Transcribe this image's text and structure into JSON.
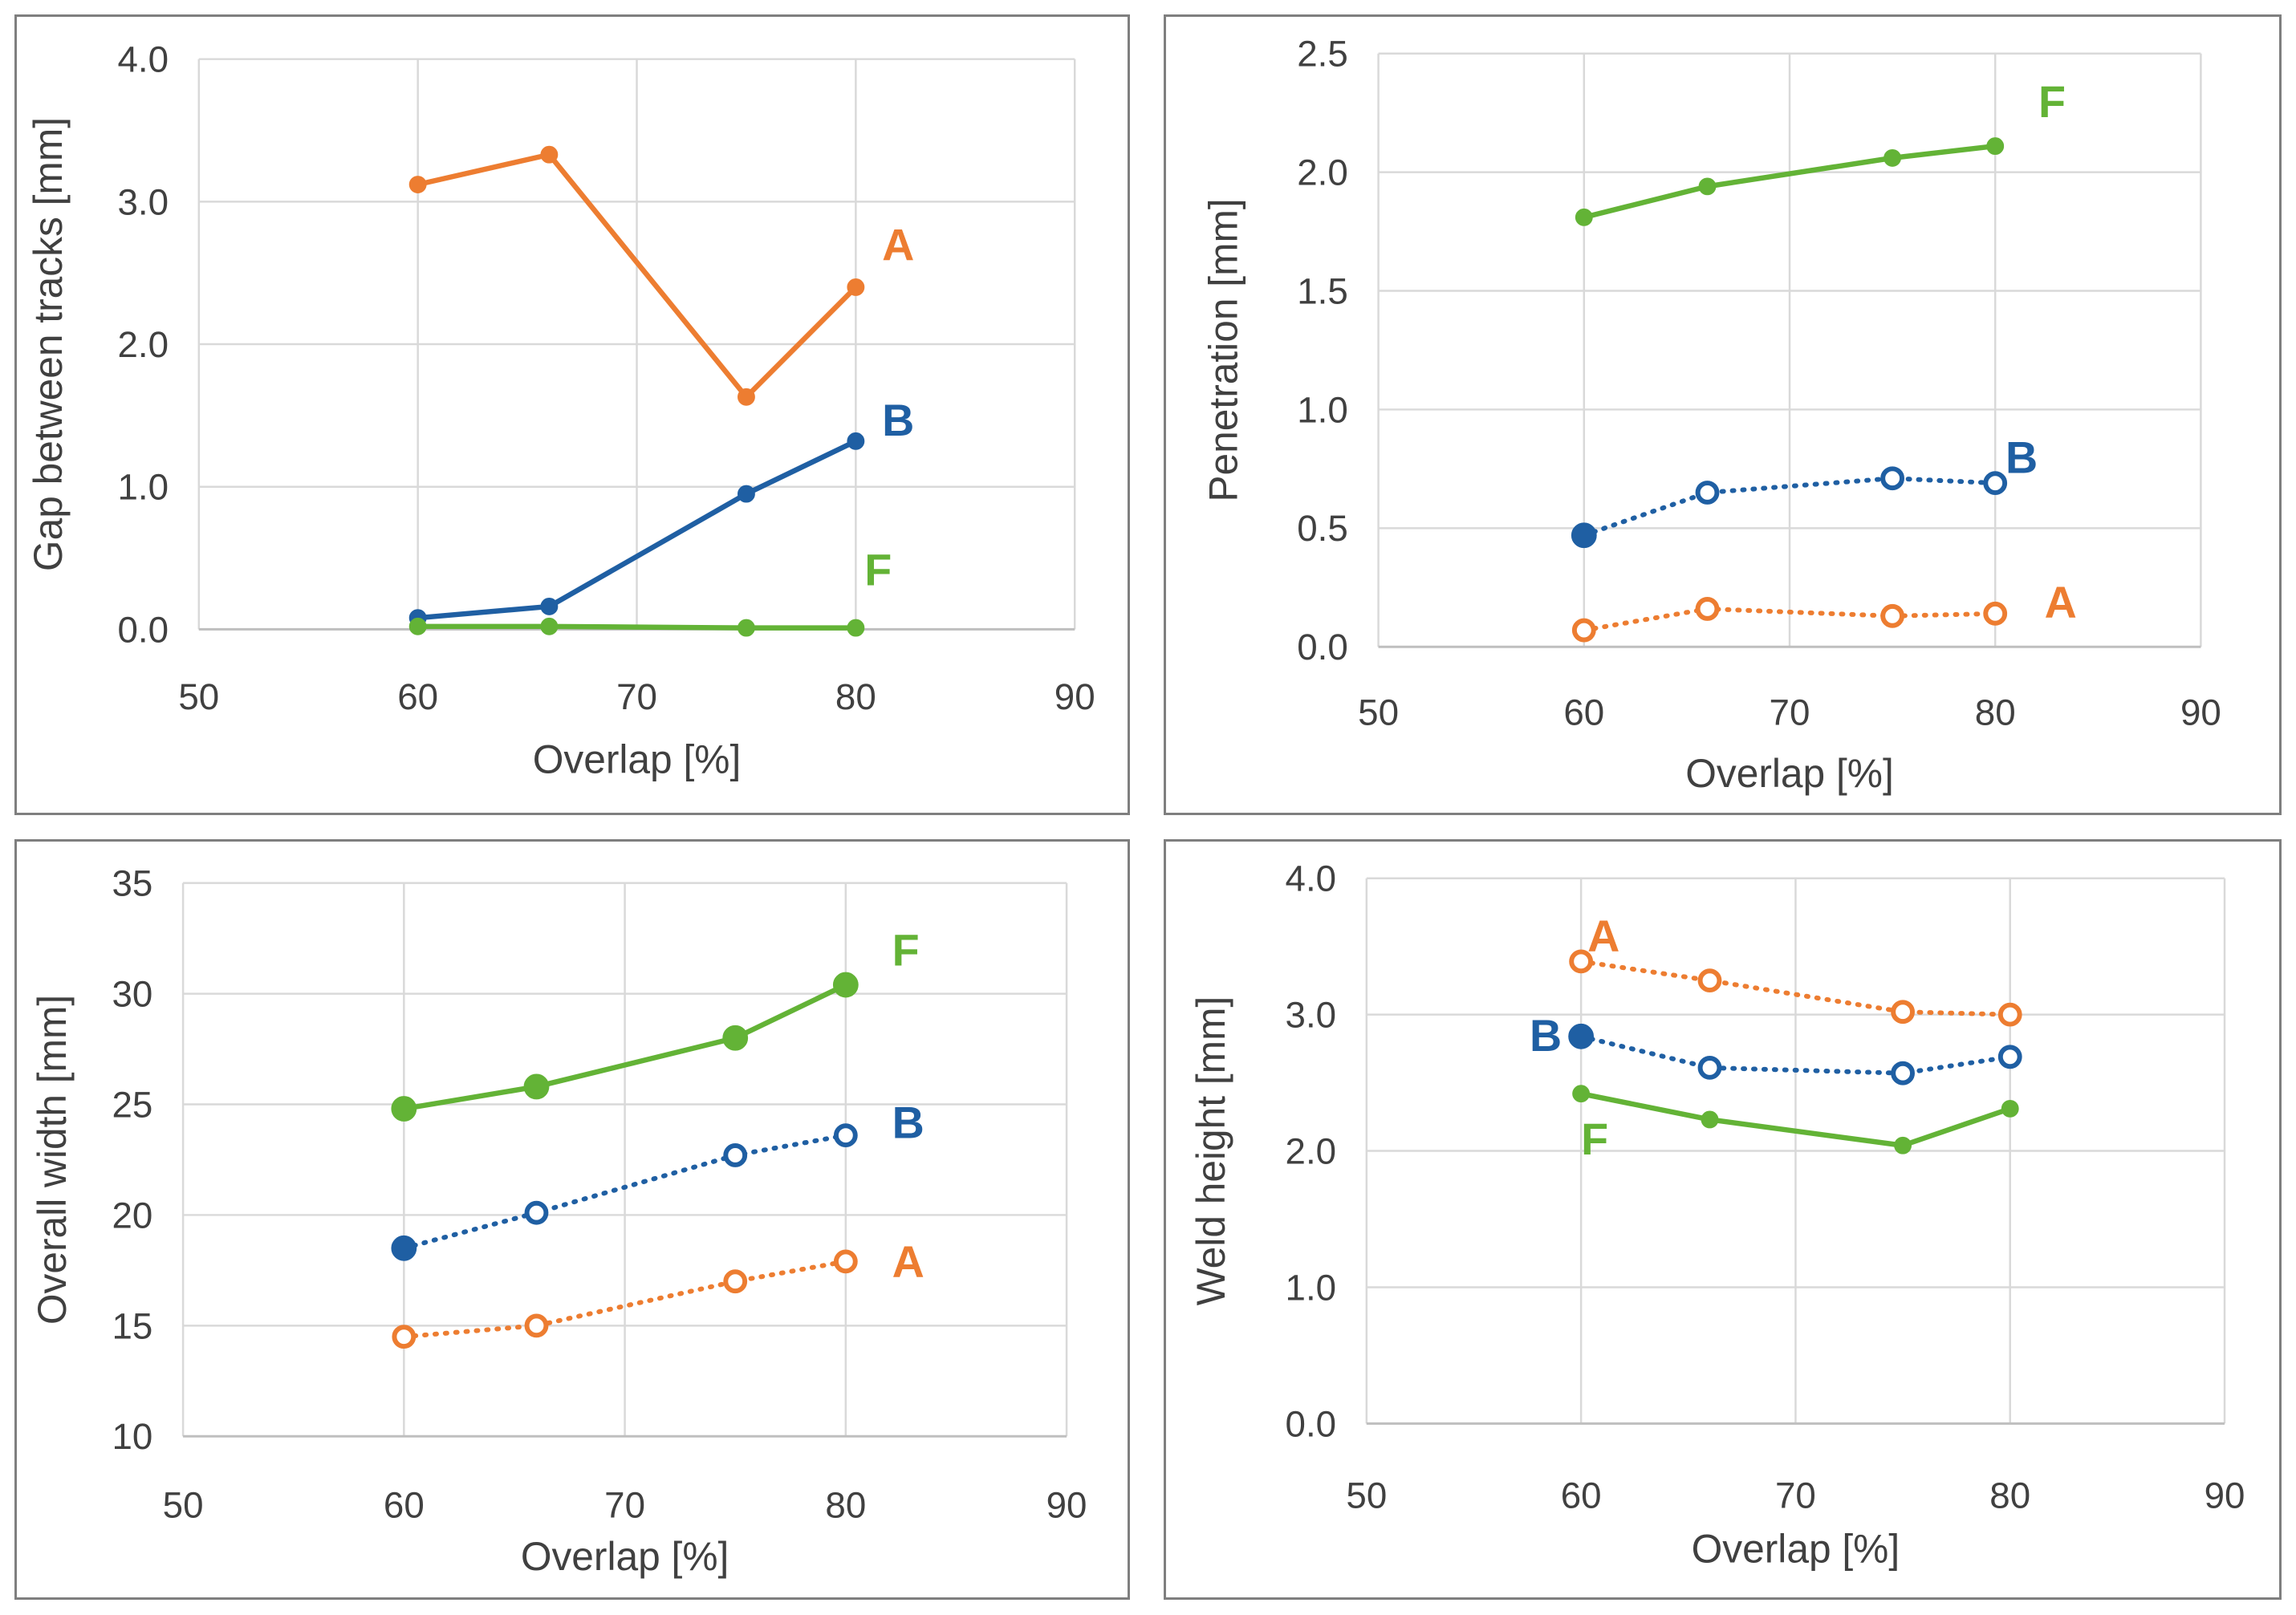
{
  "colors": {
    "A": "#ed7d31",
    "B": "#1f5fa3",
    "F": "#63b336",
    "grid": "#d9d9d9",
    "axis": "#bfbfbf",
    "text": "#404040"
  },
  "chart_data": [
    {
      "type": "line",
      "title": "",
      "xlabel": "Overlap [%]",
      "ylabel": "Gap between tracks [mm]",
      "xlim": [
        50,
        90
      ],
      "xticks": [
        50,
        60,
        70,
        80,
        90
      ],
      "xtick_labels": [
        "50",
        "60",
        "70",
        "80",
        "90"
      ],
      "ylim": [
        0,
        4
      ],
      "yticks": [
        0,
        1,
        2,
        3,
        4
      ],
      "ytick_labels": [
        "0.0",
        "1.0",
        "2.0",
        "3.0",
        "4.0"
      ],
      "grid": true,
      "series": [
        {
          "name": "A",
          "color": "#ed7d31",
          "line": "solid",
          "marker_size": "small",
          "x": [
            60,
            66,
            75,
            80
          ],
          "y": [
            3.12,
            3.33,
            1.63,
            2.4
          ],
          "hollow": [
            false,
            false,
            false,
            false
          ],
          "label_pos": [
            81.2,
            2.7
          ]
        },
        {
          "name": "B",
          "color": "#1f5fa3",
          "line": "solid",
          "marker_size": "small",
          "x": [
            60,
            66,
            75,
            80
          ],
          "y": [
            0.08,
            0.16,
            0.95,
            1.32
          ],
          "hollow": [
            false,
            false,
            false,
            false
          ],
          "label_pos": [
            81.2,
            1.47
          ]
        },
        {
          "name": "F",
          "color": "#63b336",
          "line": "solid",
          "marker_size": "small",
          "x": [
            60,
            66,
            75,
            80
          ],
          "y": [
            0.02,
            0.02,
            0.01,
            0.01
          ],
          "hollow": [
            false,
            false,
            false,
            false
          ],
          "label_pos": [
            80.4,
            0.42
          ]
        }
      ]
    },
    {
      "type": "line",
      "title": "",
      "xlabel": "Overlap [%]",
      "ylabel": "Penetration [mm]",
      "xlim": [
        50,
        90
      ],
      "xticks": [
        50,
        60,
        70,
        80,
        90
      ],
      "xtick_labels": [
        "50",
        "60",
        "70",
        "80",
        "90"
      ],
      "ylim": [
        0,
        2.5
      ],
      "yticks": [
        0,
        0.5,
        1,
        1.5,
        2,
        2.5
      ],
      "ytick_labels": [
        "0.0",
        "0.5",
        "1.0",
        "1.5",
        "2.0",
        "2.5"
      ],
      "grid": true,
      "series": [
        {
          "name": "F",
          "color": "#63b336",
          "line": "solid",
          "marker_size": "small",
          "x": [
            60,
            66,
            75,
            80
          ],
          "y": [
            1.81,
            1.94,
            2.06,
            2.11
          ],
          "hollow": [
            false,
            false,
            false,
            false
          ],
          "label_pos": [
            82.1,
            2.3
          ]
        },
        {
          "name": "B",
          "color": "#1f5fa3",
          "line": "dotted",
          "marker_size": "large",
          "x": [
            60,
            66,
            75,
            80
          ],
          "y": [
            0.47,
            0.65,
            0.71,
            0.69
          ],
          "hollow": [
            false,
            true,
            true,
            true
          ],
          "label_pos": [
            80.5,
            0.8
          ]
        },
        {
          "name": "A",
          "color": "#ed7d31",
          "line": "dotted",
          "marker_size": "large",
          "x": [
            60,
            66,
            75,
            80
          ],
          "y": [
            0.07,
            0.16,
            0.13,
            0.14
          ],
          "hollow": [
            true,
            true,
            true,
            true
          ],
          "label_pos": [
            82.4,
            0.19
          ]
        }
      ]
    },
    {
      "type": "line",
      "title": "",
      "xlabel": "Overlap [%]",
      "ylabel": "Overall width [mm]",
      "xlim": [
        50,
        90
      ],
      "xticks": [
        50,
        60,
        70,
        80,
        90
      ],
      "xtick_labels": [
        "50",
        "60",
        "70",
        "80",
        "90"
      ],
      "ylim": [
        10,
        35
      ],
      "yticks": [
        10,
        15,
        20,
        25,
        30,
        35
      ],
      "ytick_labels": [
        "10",
        "15",
        "20",
        "25",
        "30",
        "35"
      ],
      "grid": true,
      "series": [
        {
          "name": "F",
          "color": "#63b336",
          "line": "solid",
          "marker_size": "large",
          "x": [
            60,
            66,
            75,
            80
          ],
          "y": [
            24.8,
            25.8,
            28.0,
            30.4
          ],
          "hollow": [
            false,
            false,
            false,
            false
          ],
          "label_pos": [
            82.1,
            32.0
          ]
        },
        {
          "name": "B",
          "color": "#1f5fa3",
          "line": "dotted",
          "marker_size": "large",
          "x": [
            60,
            66,
            75,
            80
          ],
          "y": [
            18.5,
            20.1,
            22.7,
            23.6
          ],
          "hollow": [
            false,
            true,
            true,
            true
          ],
          "label_pos": [
            82.1,
            24.2
          ]
        },
        {
          "name": "A",
          "color": "#ed7d31",
          "line": "dotted",
          "marker_size": "large",
          "x": [
            60,
            66,
            75,
            80
          ],
          "y": [
            14.5,
            15.0,
            17.0,
            17.9
          ],
          "hollow": [
            true,
            true,
            true,
            true
          ],
          "label_pos": [
            82.1,
            17.9
          ]
        }
      ]
    },
    {
      "type": "line",
      "title": "",
      "xlabel": "Overlap [%]",
      "ylabel": "Weld height [mm]",
      "xlim": [
        50,
        90
      ],
      "xticks": [
        50,
        60,
        70,
        80,
        90
      ],
      "xtick_labels": [
        "50",
        "60",
        "70",
        "80",
        "90"
      ],
      "ylim": [
        0,
        4
      ],
      "yticks": [
        0,
        1,
        2,
        3,
        4
      ],
      "ytick_labels": [
        "0.0",
        "1.0",
        "2.0",
        "3.0",
        "4.0"
      ],
      "grid": true,
      "series": [
        {
          "name": "A",
          "color": "#ed7d31",
          "line": "dotted",
          "marker_size": "large",
          "x": [
            60,
            66,
            75,
            80
          ],
          "y": [
            3.39,
            3.25,
            3.02,
            3.0
          ],
          "hollow": [
            true,
            true,
            true,
            true
          ],
          "label_pos": [
            60.3,
            3.58
          ]
        },
        {
          "name": "B",
          "color": "#1f5fa3",
          "line": "dotted",
          "marker_size": "large",
          "x": [
            60,
            66,
            75,
            80
          ],
          "y": [
            2.84,
            2.61,
            2.57,
            2.69
          ],
          "hollow": [
            false,
            true,
            true,
            true
          ],
          "label_pos": [
            57.6,
            2.85
          ]
        },
        {
          "name": "F",
          "color": "#63b336",
          "line": "solid",
          "marker_size": "small",
          "x": [
            60,
            66,
            75,
            80
          ],
          "y": [
            2.42,
            2.23,
            2.04,
            2.31
          ],
          "hollow": [
            false,
            false,
            false,
            false
          ],
          "label_pos": [
            60.0,
            2.09
          ]
        }
      ]
    }
  ]
}
